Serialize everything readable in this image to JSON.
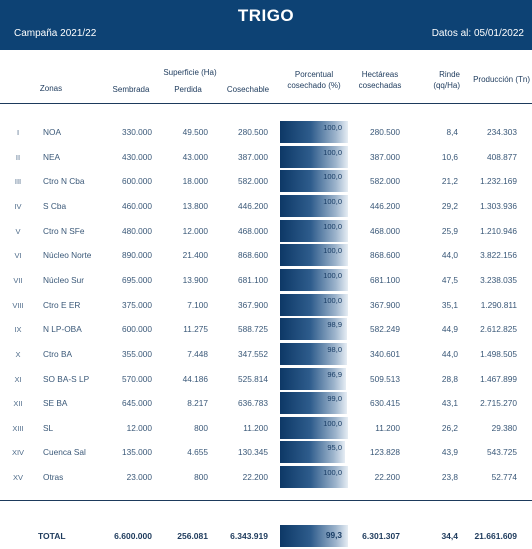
{
  "header": {
    "title": "TRIGO",
    "campaign": "Campaña 2021/22",
    "date": "Datos al: 05/01/2022"
  },
  "columns": {
    "superficie_group": "Superficie (Ha)",
    "zonas": "Zonas",
    "sembrada": "Sembrada",
    "perdida": "Perdida",
    "cosechable": "Cosechable",
    "porcentual_1": "Porcentual",
    "porcentual_2": "cosechado (%)",
    "hectareas_1": "Hectáreas",
    "hectareas_2": "cosechadas",
    "rinde_1": "Rinde",
    "rinde_2": "(qq/Ha)",
    "produccion": "Producción (Tn)"
  },
  "rows": [
    {
      "roman": "I",
      "zone": "NOA",
      "sembrada": "330.000",
      "perdida": "49.500",
      "cosechable": "280.500",
      "pct": "100,0",
      "pct_value": 100.0,
      "hectareas": "280.500",
      "rinde": "8,4",
      "produccion": "234.303"
    },
    {
      "roman": "II",
      "zone": "NEA",
      "sembrada": "430.000",
      "perdida": "43.000",
      "cosechable": "387.000",
      "pct": "100,0",
      "pct_value": 100.0,
      "hectareas": "387.000",
      "rinde": "10,6",
      "produccion": "408.877"
    },
    {
      "roman": "III",
      "zone": "Ctro N Cba",
      "sembrada": "600.000",
      "perdida": "18.000",
      "cosechable": "582.000",
      "pct": "100,0",
      "pct_value": 100.0,
      "hectareas": "582.000",
      "rinde": "21,2",
      "produccion": "1.232.169"
    },
    {
      "roman": "IV",
      "zone": "S Cba",
      "sembrada": "460.000",
      "perdida": "13.800",
      "cosechable": "446.200",
      "pct": "100,0",
      "pct_value": 100.0,
      "hectareas": "446.200",
      "rinde": "29,2",
      "produccion": "1.303.936"
    },
    {
      "roman": "V",
      "zone": "Ctro N SFe",
      "sembrada": "480.000",
      "perdida": "12.000",
      "cosechable": "468.000",
      "pct": "100,0",
      "pct_value": 100.0,
      "hectareas": "468.000",
      "rinde": "25,9",
      "produccion": "1.210.946"
    },
    {
      "roman": "VI",
      "zone": "Núcleo Norte",
      "sembrada": "890.000",
      "perdida": "21.400",
      "cosechable": "868.600",
      "pct": "100,0",
      "pct_value": 100.0,
      "hectareas": "868.600",
      "rinde": "44,0",
      "produccion": "3.822.156"
    },
    {
      "roman": "VII",
      "zone": "Núcleo Sur",
      "sembrada": "695.000",
      "perdida": "13.900",
      "cosechable": "681.100",
      "pct": "100,0",
      "pct_value": 100.0,
      "hectareas": "681.100",
      "rinde": "47,5",
      "produccion": "3.238.035"
    },
    {
      "roman": "VIII",
      "zone": "Ctro E ER",
      "sembrada": "375.000",
      "perdida": "7.100",
      "cosechable": "367.900",
      "pct": "100,0",
      "pct_value": 100.0,
      "hectareas": "367.900",
      "rinde": "35,1",
      "produccion": "1.290.811"
    },
    {
      "roman": "IX",
      "zone": "N LP-OBA",
      "sembrada": "600.000",
      "perdida": "11.275",
      "cosechable": "588.725",
      "pct": "98,9",
      "pct_value": 98.9,
      "hectareas": "582.249",
      "rinde": "44,9",
      "produccion": "2.612.825"
    },
    {
      "roman": "X",
      "zone": "Ctro BA",
      "sembrada": "355.000",
      "perdida": "7.448",
      "cosechable": "347.552",
      "pct": "98,0",
      "pct_value": 98.0,
      "hectareas": "340.601",
      "rinde": "44,0",
      "produccion": "1.498.505"
    },
    {
      "roman": "XI",
      "zone": "SO BA-S LP",
      "sembrada": "570.000",
      "perdida": "44.186",
      "cosechable": "525.814",
      "pct": "96,9",
      "pct_value": 96.9,
      "hectareas": "509.513",
      "rinde": "28,8",
      "produccion": "1.467.899"
    },
    {
      "roman": "XII",
      "zone": "SE BA",
      "sembrada": "645.000",
      "perdida": "8.217",
      "cosechable": "636.783",
      "pct": "99,0",
      "pct_value": 99.0,
      "hectareas": "630.415",
      "rinde": "43,1",
      "produccion": "2.715.270"
    },
    {
      "roman": "XIII",
      "zone": "SL",
      "sembrada": "12.000",
      "perdida": "800",
      "cosechable": "11.200",
      "pct": "100,0",
      "pct_value": 100.0,
      "hectareas": "11.200",
      "rinde": "26,2",
      "produccion": "29.380"
    },
    {
      "roman": "XIV",
      "zone": "Cuenca Sal",
      "sembrada": "135.000",
      "perdida": "4.655",
      "cosechable": "130.345",
      "pct": "95,0",
      "pct_value": 95.0,
      "hectareas": "123.828",
      "rinde": "43,9",
      "produccion": "543.725"
    },
    {
      "roman": "XV",
      "zone": "Otras",
      "sembrada": "23.000",
      "perdida": "800",
      "cosechable": "22.200",
      "pct": "100,0",
      "pct_value": 100.0,
      "hectareas": "22.200",
      "rinde": "23,8",
      "produccion": "52.774"
    }
  ],
  "total": {
    "label": "TOTAL",
    "sembrada": "6.600.000",
    "perdida": "256.081",
    "cosechable": "6.343.919",
    "pct": "99,3",
    "pct_value": 99.3,
    "hectareas": "6.301.307",
    "rinde": "34,4",
    "produccion": "21.661.609"
  },
  "colors": {
    "header_bg": "#0d4274",
    "text": "#1d3a5c",
    "bar_dark": "#0d3866",
    "bar_light": "#e6edf4"
  }
}
